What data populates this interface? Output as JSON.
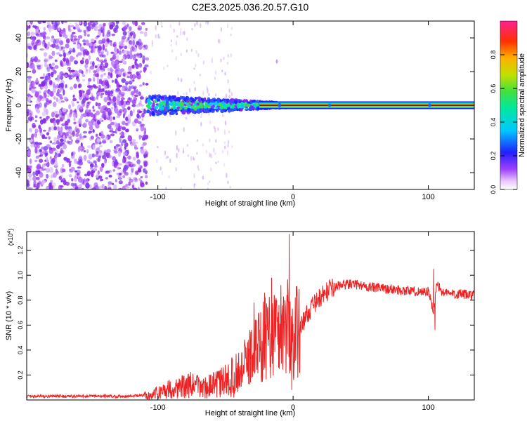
{
  "title": "C2E3.2025.036.20.57.G10",
  "colors": {
    "snr_line": "#ee2222",
    "spec_low": "#8a2be2",
    "spec_mid": "#0000ff",
    "spec_cyan": "#00e5ff",
    "spec_green": "#32cd32",
    "spec_red": "#ff2020"
  },
  "chart_data": [
    {
      "type": "heatmap",
      "xlabel": "Height of straight line (km)",
      "ylabel": "Frequency (Hz)",
      "xlim": [
        -197,
        134
      ],
      "ylim": [
        -50,
        50
      ],
      "xticks": [
        -100,
        0,
        100
      ],
      "yticks": [
        -40,
        -20,
        0,
        20,
        40
      ],
      "xtick_labels": [
        "-100",
        "0",
        "100"
      ],
      "ytick_labels": [
        "-40",
        "-20",
        "0",
        "20",
        "40"
      ],
      "features": [
        {
          "region": "noise",
          "x_range": [
            -197,
            -108
          ],
          "freq_range": [
            -50,
            50
          ],
          "level": 0.15
        },
        {
          "region": "sparse_stripes",
          "x_range": [
            -108,
            -45
          ],
          "freq_range": [
            -50,
            50
          ],
          "level": 0.08
        },
        {
          "region": "broad_signal",
          "x_range": [
            -108,
            -5
          ],
          "freq_center": 0,
          "freq_halfwidth": [
            6,
            1.5
          ],
          "level": 0.5
        },
        {
          "region": "narrow_carrier",
          "x_range": [
            -25,
            134
          ],
          "freq_center": 0,
          "freq_halfwidth": 1,
          "level": 1.0
        }
      ],
      "colorbar": {
        "label": "Normalized spectral amplitude",
        "range": [
          0,
          1
        ],
        "ticks": [
          0.0,
          0.2,
          0.4,
          0.6,
          0.8
        ],
        "tick_labels": [
          "0.0",
          "0.2",
          "0.4",
          "0.6",
          "0.8"
        ]
      }
    },
    {
      "type": "line",
      "xlabel": "Height of straight line (km)",
      "ylabel": "SNR (10 * v/v)",
      "scale_label": "(x10",
      "scale_exp": "4",
      "scale_close": ")",
      "xlim": [
        -197,
        134
      ],
      "ylim": [
        0,
        1.35
      ],
      "xticks": [
        -100,
        0,
        100
      ],
      "yticks": [
        0.2,
        0.4,
        0.6,
        0.8,
        1.0,
        1.2
      ],
      "xtick_labels": [
        "-100",
        "0",
        "100"
      ],
      "ytick_labels": [
        "0.2",
        "0.4",
        "0.6",
        "0.8",
        "1.0",
        "1.2"
      ],
      "series": [
        {
          "x": [
            -197,
            -180,
            -160,
            -140,
            -120,
            -105,
            -95,
            -85,
            -75,
            -65,
            -55,
            -45,
            -40,
            -35,
            -30,
            -25,
            -20,
            -15,
            -10,
            -5,
            0,
            5,
            10,
            15,
            20,
            25,
            30,
            35,
            40,
            50,
            60,
            70,
            80,
            90,
            100,
            104,
            106,
            110,
            120,
            134
          ],
          "y": [
            0.03,
            0.03,
            0.03,
            0.03,
            0.03,
            0.04,
            0.08,
            0.1,
            0.12,
            0.1,
            0.13,
            0.18,
            0.22,
            0.3,
            0.38,
            0.45,
            0.5,
            0.55,
            0.55,
            0.6,
            0.5,
            0.58,
            0.68,
            0.76,
            0.82,
            0.87,
            0.9,
            0.92,
            0.93,
            0.92,
            0.9,
            0.89,
            0.88,
            0.87,
            0.87,
            0.7,
            0.95,
            0.86,
            0.85,
            0.84
          ],
          "spikes": [
            [
              -3,
              1.33
            ],
            [
              -16,
              0.98
            ],
            [
              -21,
              0.86
            ],
            [
              -29,
              0.78
            ],
            [
              -9,
              0.92
            ],
            [
              104,
              1.05
            ],
            [
              105,
              0.56
            ],
            [
              -1,
              0.08
            ]
          ]
        }
      ]
    }
  ]
}
